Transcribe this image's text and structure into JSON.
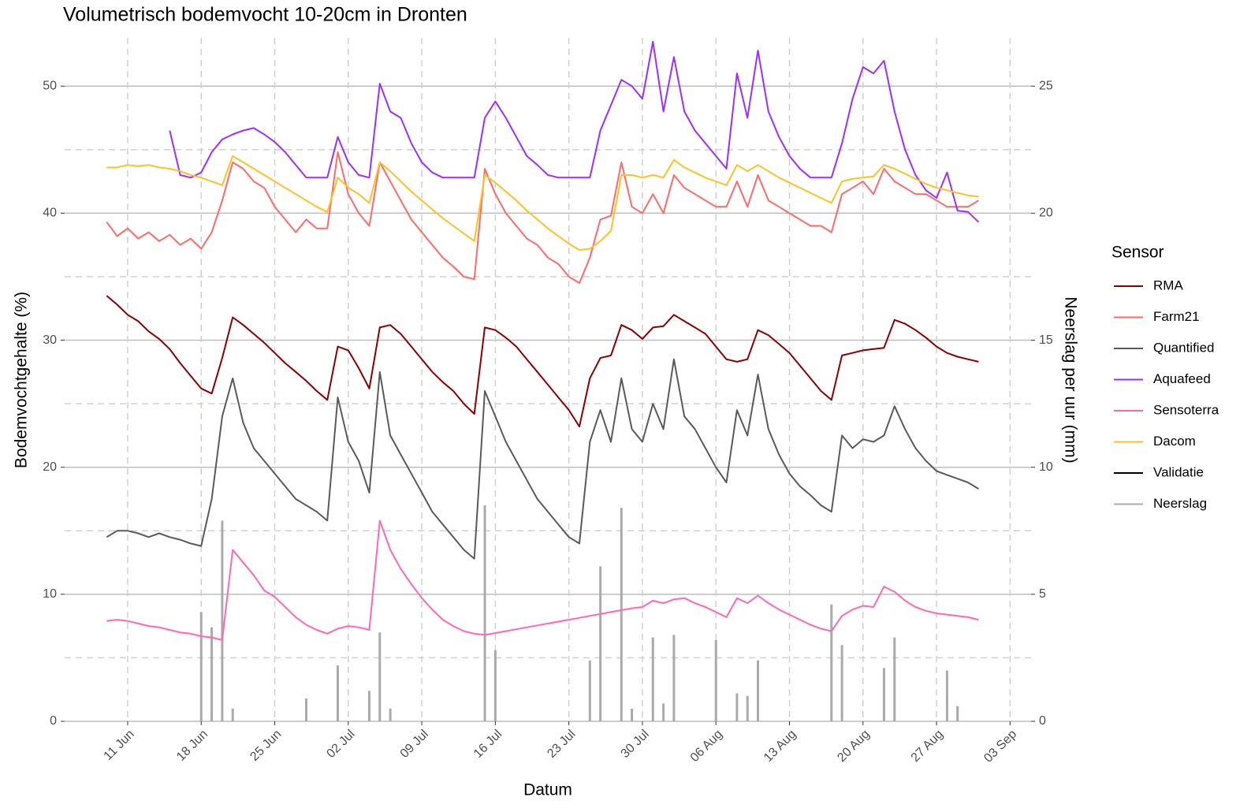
{
  "chart_data": {
    "type": "line",
    "title": "Volumetrisch bodemvocht 10-20cm in Dronten",
    "x_label": "Datum",
    "y_label": "Bodemvochtgehalte (%)",
    "y2_label": "Neerslag per uur (mm)",
    "legend_title": "Sensor",
    "legend": "right",
    "grid": true,
    "minor_grid": true,
    "xlim": [
      "05 Jun",
      "05 Sep"
    ],
    "xticks": [
      "11 Jun",
      "18 Jun",
      "25 Jun",
      "02 Jul",
      "09 Jul",
      "16 Jul",
      "23 Jul",
      "30 Jul",
      "06 Aug",
      "13 Aug",
      "20 Aug",
      "27 Aug",
      "03 Sep"
    ],
    "ylim": [
      0,
      53.8
    ],
    "yticks": [
      0,
      10,
      20,
      30,
      40,
      50
    ],
    "y2lim": [
      0,
      26.9
    ],
    "y2ticks": [
      0,
      5,
      10,
      15,
      20,
      25
    ],
    "x": [
      "09 Jun",
      "10 Jun",
      "11 Jun",
      "12 Jun",
      "13 Jun",
      "14 Jun",
      "15 Jun",
      "16 Jun",
      "17 Jun",
      "18 Jun",
      "19 Jun",
      "20 Jun",
      "21 Jun",
      "22 Jun",
      "23 Jun",
      "24 Jun",
      "25 Jun",
      "26 Jun",
      "27 Jun",
      "28 Jun",
      "29 Jun",
      "30 Jun",
      "01 Jul",
      "02 Jul",
      "03 Jul",
      "04 Jul",
      "05 Jul",
      "06 Jul",
      "07 Jul",
      "08 Jul",
      "09 Jul",
      "10 Jul",
      "11 Jul",
      "12 Jul",
      "13 Jul",
      "14 Jul",
      "15 Jul",
      "16 Jul",
      "17 Jul",
      "18 Jul",
      "19 Jul",
      "20 Jul",
      "21 Jul",
      "22 Jul",
      "23 Jul",
      "24 Jul",
      "25 Jul",
      "26 Jul",
      "27 Jul",
      "28 Jul",
      "29 Jul",
      "30 Jul",
      "31 Jul",
      "01 Aug",
      "02 Aug",
      "03 Aug",
      "04 Aug",
      "05 Aug",
      "06 Aug",
      "07 Aug",
      "08 Aug",
      "09 Aug",
      "10 Aug",
      "11 Aug",
      "12 Aug",
      "13 Aug",
      "14 Aug",
      "15 Aug",
      "16 Aug",
      "17 Aug",
      "18 Aug",
      "19 Aug",
      "20 Aug",
      "21 Aug",
      "22 Aug",
      "23 Aug",
      "24 Aug",
      "25 Aug",
      "26 Aug",
      "27 Aug",
      "28 Aug",
      "29 Aug",
      "30 Aug",
      "31 Aug"
    ],
    "series": [
      {
        "name": "RMA",
        "color": "#8b0000",
        "values": [
          33.5,
          32.8,
          32,
          31.5,
          30.7,
          30.1,
          29.3,
          28.2,
          27.2,
          26.2,
          25.8,
          28.6,
          31.8,
          31.2,
          30.5,
          29.8,
          29,
          28.2,
          27.5,
          26.8,
          26,
          25.3,
          29.5,
          29.2,
          27.8,
          26.2,
          31.0,
          31.2,
          30.5,
          29.5,
          28.5,
          27.5,
          26.7,
          26,
          25,
          24.2,
          31.0,
          30.8,
          30.2,
          29.5,
          28.5,
          27.5,
          26.5,
          25.5,
          24.5,
          23.2,
          27,
          28.6,
          28.8,
          31.2,
          30.8,
          30.1,
          31.0,
          31.1,
          32.0,
          31.5,
          31,
          30.5,
          29.5,
          28.5,
          28.3,
          28.5,
          30.8,
          30.4,
          29.7,
          29,
          28,
          27,
          26,
          25.3,
          28.8,
          29,
          29.2,
          29.3,
          29.4,
          31.6,
          31.3,
          30.8,
          30.2,
          29.5,
          29,
          28.7,
          28.5,
          28.3
        ]
      },
      {
        "name": "Farm21",
        "color": "#ff6a6a",
        "values": [
          39.3,
          38.2,
          38.8,
          38,
          38.5,
          37.8,
          38.3,
          37.5,
          38,
          37.2,
          38.5,
          41,
          44,
          43.5,
          42.5,
          42,
          40.5,
          39.5,
          38.5,
          39.5,
          38.8,
          38.8,
          44.8,
          41.5,
          40,
          39,
          44,
          42.5,
          41,
          39.5,
          38.5,
          37.5,
          36.5,
          35.8,
          35,
          34.8,
          43.5,
          41.5,
          40,
          39,
          38,
          37.5,
          36.5,
          36,
          35,
          34.5,
          36.5,
          39.5,
          39.8,
          44,
          40.5,
          40,
          41.5,
          40,
          43,
          42,
          41.5,
          41,
          40.5,
          40.5,
          42.5,
          40.5,
          43,
          41,
          40.5,
          40,
          39.5,
          39,
          39,
          38.5,
          41.5,
          42,
          42.5,
          41.5,
          43.5,
          42.5,
          42,
          41.5,
          41.5,
          41,
          40.5,
          40.5,
          40.5,
          41
        ]
      },
      {
        "name": "Quantified",
        "color": "#5a5a5a",
        "values": [
          14.5,
          15,
          15,
          14.8,
          14.5,
          14.8,
          14.5,
          14.3,
          14,
          13.8,
          17.5,
          24,
          27,
          23.5,
          21.5,
          20.5,
          19.5,
          18.5,
          17.5,
          17,
          16.5,
          15.8,
          25.5,
          22,
          20.5,
          18,
          27.5,
          22.5,
          21,
          19.5,
          18,
          16.5,
          15.5,
          14.5,
          13.5,
          12.8,
          26,
          24,
          22,
          20.5,
          19,
          17.5,
          16.5,
          15.5,
          14.5,
          14,
          22,
          24.5,
          22,
          27,
          23,
          22,
          25,
          23,
          28.5,
          24,
          23,
          21.5,
          20,
          18.8,
          24.5,
          22.5,
          27.3,
          23,
          21,
          19.5,
          18.5,
          17.8,
          17,
          16.5,
          22.5,
          21.5,
          22.2,
          22,
          22.5,
          24.8,
          23,
          21.5,
          20.5,
          19.7,
          19.4,
          19.1,
          18.8,
          18.3
        ]
      },
      {
        "name": "Aquafeed",
        "color": "#9b30ff",
        "values": [
          null,
          null,
          null,
          null,
          null,
          null,
          46.5,
          43,
          42.8,
          43.2,
          44.8,
          45.8,
          46.2,
          46.5,
          46.7,
          46.2,
          45.6,
          44.8,
          43.8,
          42.8,
          42.8,
          42.8,
          46,
          44,
          43,
          42.8,
          50.2,
          48,
          47.5,
          45.5,
          44,
          43.2,
          42.8,
          42.8,
          42.8,
          42.8,
          47.5,
          48.8,
          47.5,
          46,
          44.5,
          43.8,
          43,
          42.8,
          42.8,
          42.8,
          42.8,
          46.5,
          48.5,
          50.5,
          50,
          49,
          53.5,
          48,
          52.3,
          48,
          46.5,
          45.5,
          44.5,
          43.5,
          51,
          47.5,
          52.8,
          48,
          46,
          44.5,
          43.5,
          42.8,
          42.8,
          42.8,
          45.5,
          49,
          51.5,
          51,
          52,
          48,
          45,
          43,
          41.8,
          41.2,
          43.2,
          40.2,
          40.1,
          39.3
        ]
      },
      {
        "name": "Sensoterra",
        "color": "#ff69b4",
        "values": [
          7.9,
          8.0,
          7.9,
          7.7,
          7.5,
          7.4,
          7.2,
          7.0,
          6.9,
          6.7,
          6.6,
          6.4,
          13.5,
          12.5,
          11.5,
          10.3,
          9.8,
          9.0,
          8.2,
          7.6,
          7.2,
          6.9,
          7.3,
          7.5,
          7.4,
          7.2,
          15.8,
          13.5,
          12,
          10.8,
          9.7,
          8.8,
          8.0,
          7.5,
          7.1,
          6.9,
          6.8,
          6.95,
          7.1,
          7.25,
          7.4,
          7.55,
          7.7,
          7.85,
          8.0,
          8.15,
          8.3,
          8.45,
          8.6,
          8.75,
          8.9,
          9.0,
          9.5,
          9.3,
          9.6,
          9.7,
          9.3,
          9.0,
          8.6,
          8.2,
          9.7,
          9.3,
          9.9,
          9.3,
          8.8,
          8.4,
          8.0,
          7.6,
          7.3,
          7.1,
          8.3,
          8.8,
          9.1,
          9.0,
          10.6,
          10.2,
          9.5,
          9.0,
          8.7,
          8.5,
          8.4,
          8.3,
          8.2,
          8.0
        ]
      },
      {
        "name": "Dacom",
        "color": "#ffc125",
        "values": [
          43.6,
          43.6,
          43.8,
          43.7,
          43.8,
          43.6,
          43.5,
          43.3,
          43,
          42.8,
          42.5,
          42.2,
          44.5,
          44,
          43.5,
          43,
          42.5,
          42,
          41.5,
          41,
          40.5,
          40.1,
          42.8,
          42,
          41.5,
          40.8,
          44,
          43.3,
          42.5,
          41.7,
          41,
          40.3,
          39.6,
          39,
          38.4,
          37.8,
          43,
          42.4,
          41.7,
          41,
          40.2,
          39.5,
          38.8,
          38.2,
          37.6,
          37.1,
          37.2,
          37.8,
          38.6,
          43,
          43,
          42.8,
          43,
          42.8,
          44.2,
          43.6,
          43.2,
          42.8,
          42.5,
          42.2,
          43.8,
          43.3,
          43.8,
          43.3,
          42.8,
          42.4,
          42,
          41.6,
          41.2,
          40.8,
          42.5,
          42.7,
          42.8,
          42.9,
          43.8,
          43.5,
          43.1,
          42.7,
          42.3,
          42,
          41.8,
          41.6,
          41.4,
          41.3
        ]
      },
      {
        "name": "Validatie",
        "color": "#000000",
        "values": [
          null,
          null,
          null,
          null,
          null,
          null,
          null,
          null,
          null,
          null,
          null,
          null,
          null,
          null,
          null,
          null,
          null,
          null,
          null,
          null,
          null,
          null,
          null,
          null,
          null,
          null,
          null,
          null,
          null,
          null,
          null,
          null,
          null,
          null,
          null,
          null,
          null,
          null,
          null,
          null,
          null,
          null,
          null,
          null,
          null,
          null,
          null,
          null,
          null,
          null,
          null,
          null,
          null,
          null,
          null,
          null,
          null,
          null,
          null,
          null,
          null,
          null,
          null,
          null,
          null,
          null,
          null,
          null,
          null,
          null,
          null,
          null,
          null,
          null,
          null,
          null,
          null,
          null,
          null,
          null,
          null,
          null,
          null,
          null
        ]
      },
      {
        "name": "Neerslag",
        "color": "#aaaaaa",
        "axis": "y2",
        "values": [
          0,
          0,
          0,
          0,
          0,
          0,
          0,
          0,
          0,
          4.3,
          3.7,
          7.9,
          0.5,
          0,
          0,
          0,
          0,
          0,
          0,
          0.9,
          0,
          0,
          2.2,
          0,
          0,
          1.2,
          3.5,
          0.5,
          0,
          0,
          0,
          0,
          0,
          0,
          0,
          0,
          8.5,
          2.8,
          0,
          0,
          0,
          0,
          0,
          0,
          0,
          0,
          2.4,
          6.1,
          0,
          8.4,
          0.5,
          0,
          3.3,
          0.7,
          3.4,
          0,
          0,
          0,
          3.2,
          0,
          1.1,
          1.0,
          2.4,
          0,
          0,
          0,
          0,
          0,
          0,
          4.6,
          3.0,
          0,
          0,
          0,
          2.1,
          3.3,
          0,
          0,
          0,
          0,
          2.0,
          0.6,
          0,
          0
        ]
      }
    ]
  }
}
